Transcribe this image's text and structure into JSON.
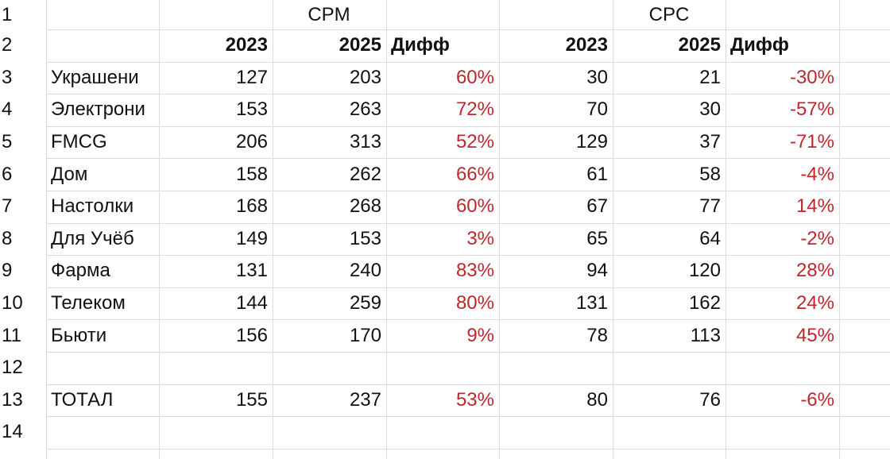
{
  "row_numbers": [
    1,
    2,
    3,
    4,
    5,
    6,
    7,
    8,
    9,
    10,
    11,
    12,
    13,
    14
  ],
  "groups": [
    "CPM",
    "CPC"
  ],
  "headers": [
    2023,
    2025,
    "Дифф",
    2023,
    2025,
    "Дифф"
  ],
  "rows": [
    {
      "label": "Украшени",
      "values": [
        127,
        203,
        "60%",
        30,
        21,
        "-30%"
      ]
    },
    {
      "label": "Электрони",
      "values": [
        153,
        263,
        "72%",
        70,
        30,
        "-57%"
      ]
    },
    {
      "label": "FMCG",
      "values": [
        206,
        313,
        "52%",
        129,
        37,
        "-71%"
      ]
    },
    {
      "label": "Дом",
      "values": [
        158,
        262,
        "66%",
        61,
        58,
        "-4%"
      ]
    },
    {
      "label": "Настолки",
      "values": [
        168,
        268,
        "60%",
        67,
        77,
        "14%"
      ]
    },
    {
      "label": "Для Учёб",
      "values": [
        149,
        153,
        "3%",
        65,
        64,
        "-2%"
      ]
    },
    {
      "label": "Фарма",
      "values": [
        131,
        240,
        "83%",
        94,
        120,
        "28%"
      ]
    },
    {
      "label": "Телеком",
      "values": [
        144,
        259,
        "80%",
        131,
        162,
        "24%"
      ]
    },
    {
      "label": "Бьюти",
      "values": [
        156,
        170,
        "9%",
        78,
        113,
        "45%"
      ]
    }
  ],
  "total": {
    "label": "ТОТАЛ",
    "values": [
      155,
      237,
      "53%",
      80,
      76,
      "-6%"
    ]
  }
}
